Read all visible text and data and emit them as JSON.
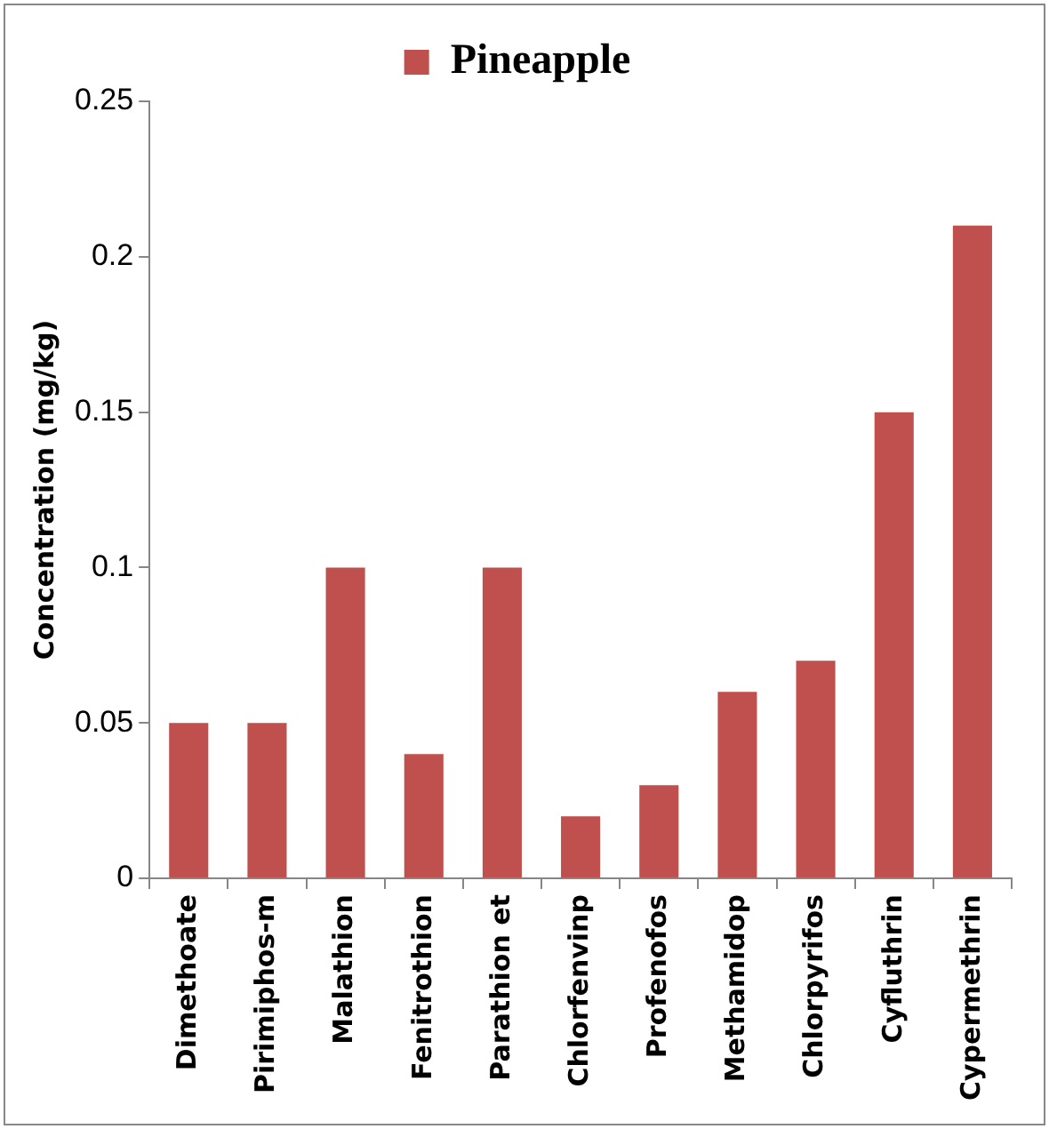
{
  "chart_data": {
    "type": "bar",
    "ylabel": "Concentration (mg/kg)",
    "categories": [
      "Dimethoate",
      "Pirimiphos-m",
      "Malathion",
      "Fenitrothion",
      "Parathion et",
      "Chlorfenvinp",
      "Profenofos",
      "Methamidop",
      "Chlorpyrifos",
      "Cyfluthrin",
      "Cypermethrin"
    ],
    "series": [
      {
        "name": "Pineapple",
        "color": "#c0504d",
        "values": [
          0.05,
          0.05,
          0.1,
          0.04,
          0.1,
          0.02,
          0.03,
          0.06,
          0.07,
          0.15,
          0.21
        ]
      }
    ],
    "ylim": [
      0,
      0.25
    ],
    "yticks": [
      0,
      0.05,
      0.1,
      0.15,
      0.2,
      0.25
    ],
    "grid": false,
    "legend": "top"
  }
}
